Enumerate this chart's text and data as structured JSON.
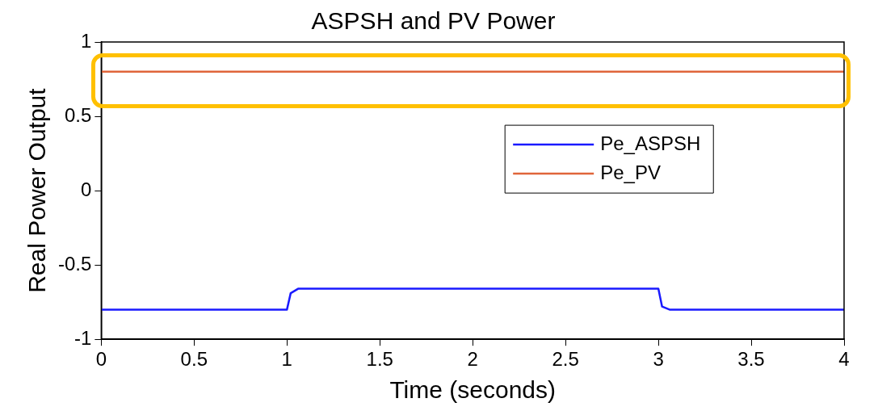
{
  "chart_data": {
    "type": "line",
    "title": "ASPSH and PV Power",
    "xlabel": "Time (seconds)",
    "ylabel": "Real Power Output",
    "xlim": [
      0,
      4
    ],
    "xticks": [
      0,
      0.5,
      1,
      1.5,
      2,
      2.5,
      3,
      3.5,
      4
    ],
    "ylim": [
      -1,
      1
    ],
    "yticks": [
      -1,
      -0.5,
      0,
      0.5,
      1
    ],
    "grid": false,
    "legend": "right",
    "marker": "none",
    "line_style": "solid",
    "series": [
      {
        "name": "Pe_ASPSH",
        "color": "#1a1aff",
        "x": [
          0,
          1,
          1.02,
          1.06,
          3,
          3.02,
          3.06,
          4
        ],
        "values": [
          -0.8,
          -0.8,
          -0.69,
          -0.66,
          -0.66,
          -0.78,
          -0.8,
          -0.8
        ]
      },
      {
        "name": "Pe_PV",
        "color": "#e0653a",
        "x": [
          0,
          4
        ],
        "values": [
          0.8,
          0.8
        ]
      }
    ]
  }
}
